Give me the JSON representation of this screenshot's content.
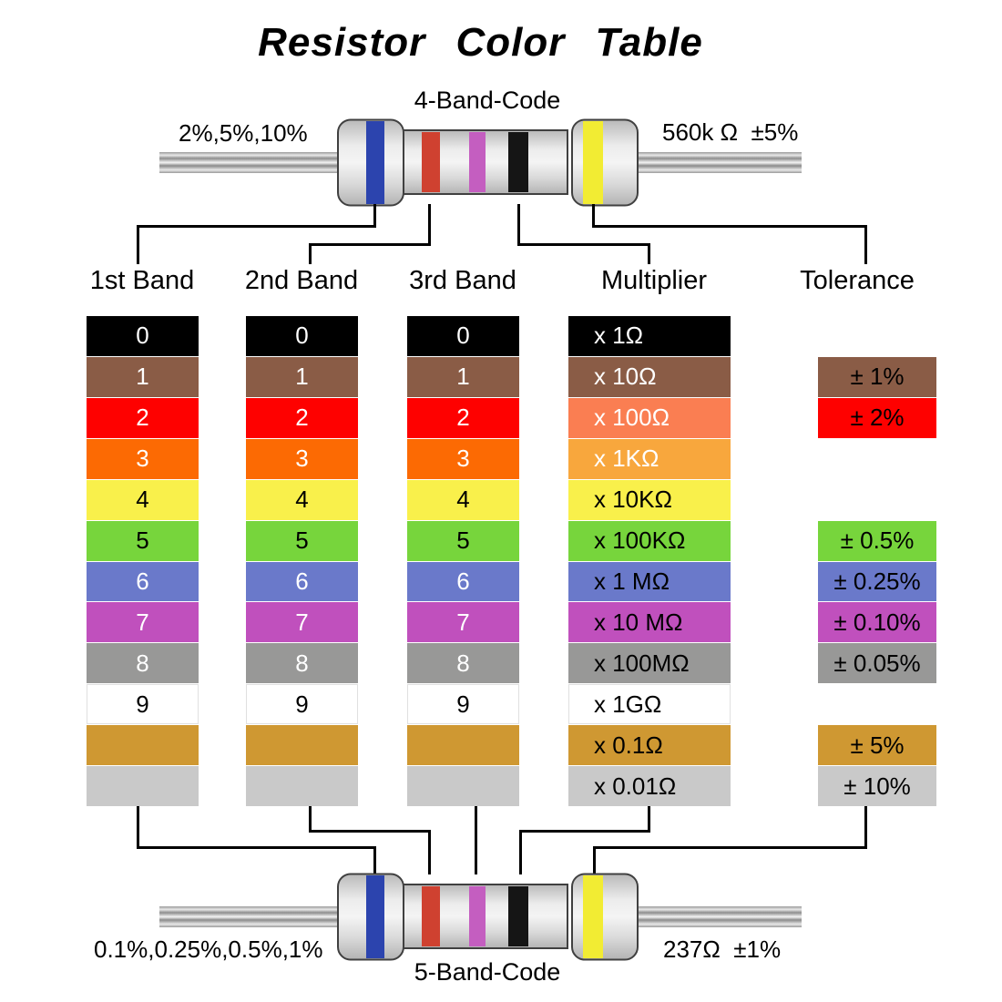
{
  "title": "Resistor Color Table",
  "top_resistor": {
    "code_label": "4-Band-Code",
    "left_label": "2%,5%,10%",
    "right_label": "560k Ω  ±5%"
  },
  "bottom_resistor": {
    "code_label": "5-Band-Code",
    "left_label": "0.1%,0.25%,0.5%,1%",
    "right_label": "237Ω  ±1%"
  },
  "resistor_bands": [
    {
      "name": "blue",
      "color": "#2c44ae"
    },
    {
      "name": "red",
      "color": "#cf4130"
    },
    {
      "name": "violet",
      "color": "#c45ec0"
    },
    {
      "name": "black",
      "color": "#151515"
    },
    {
      "name": "yellow",
      "color": "#f2ec33"
    }
  ],
  "columns": [
    "1st Band",
    "2nd Band",
    "3rd Band",
    "Multiplier",
    "Tolerance"
  ],
  "table": {
    "rows": [
      {
        "color": "black",
        "digit": "0",
        "band_bg": "#000000",
        "band_fg": "#ffffff",
        "mult_label": "x 1Ω",
        "mult_bg": "#000000",
        "mult_fg": "#ffffff",
        "tol_label": null,
        "tol_bg": null,
        "tol_fg": null
      },
      {
        "color": "brown",
        "digit": "1",
        "band_bg": "#8a5c46",
        "band_fg": "#ffffff",
        "mult_label": "x 10Ω",
        "mult_bg": "#8a5c46",
        "mult_fg": "#ffffff",
        "tol_label": "± 1%",
        "tol_bg": "#8a5c46",
        "tol_fg": "#000000"
      },
      {
        "color": "red",
        "digit": "2",
        "band_bg": "#fe0100",
        "band_fg": "#ffffff",
        "mult_label": "x 100Ω",
        "mult_bg": "#fa7e52",
        "mult_fg": "#ffffff",
        "tol_label": "± 2%",
        "tol_bg": "#fe0100",
        "tol_fg": "#000000"
      },
      {
        "color": "orange",
        "digit": "3",
        "band_bg": "#fc6a03",
        "band_fg": "#ffffff",
        "mult_label": "x 1KΩ",
        "mult_bg": "#f8a73d",
        "mult_fg": "#ffffff",
        "tol_label": null,
        "tol_bg": null,
        "tol_fg": null
      },
      {
        "color": "yellow",
        "digit": "4",
        "band_bg": "#f9f04b",
        "band_fg": "#000000",
        "mult_label": "x 10KΩ",
        "mult_bg": "#f9f04b",
        "mult_fg": "#000000",
        "tol_label": null,
        "tol_bg": null,
        "tol_fg": null
      },
      {
        "color": "green",
        "digit": "5",
        "band_bg": "#77d53c",
        "band_fg": "#000000",
        "mult_label": "x 100KΩ",
        "mult_bg": "#77d53c",
        "mult_fg": "#000000",
        "tol_label": "± 0.5%",
        "tol_bg": "#77d53c",
        "tol_fg": "#000000"
      },
      {
        "color": "blue",
        "digit": "6",
        "band_bg": "#6a79ca",
        "band_fg": "#ffffff",
        "mult_label": "x 1 MΩ",
        "mult_bg": "#6a79ca",
        "mult_fg": "#000000",
        "tol_label": "± 0.25%",
        "tol_bg": "#6a79ca",
        "tol_fg": "#000000"
      },
      {
        "color": "violet",
        "digit": "7",
        "band_bg": "#c050bd",
        "band_fg": "#ffffff",
        "mult_label": "x 10 MΩ",
        "mult_bg": "#c050bd",
        "mult_fg": "#000000",
        "tol_label": "± 0.10%",
        "tol_bg": "#c050bd",
        "tol_fg": "#000000"
      },
      {
        "color": "gray",
        "digit": "8",
        "band_bg": "#989897",
        "band_fg": "#ffffff",
        "mult_label": "x 100MΩ",
        "mult_bg": "#989897",
        "mult_fg": "#000000",
        "tol_label": "± 0.05%",
        "tol_bg": "#989897",
        "tol_fg": "#000000"
      },
      {
        "color": "white",
        "digit": "9",
        "band_bg": "#ffffff",
        "band_fg": "#000000",
        "mult_label": "x 1GΩ",
        "mult_bg": "#ffffff",
        "mult_fg": "#000000",
        "tol_label": null,
        "tol_bg": null,
        "tol_fg": null
      },
      {
        "color": "gold",
        "digit": "",
        "band_bg": "#cf9832",
        "band_fg": "#000000",
        "mult_label": "x 0.1Ω",
        "mult_bg": "#cf9832",
        "mult_fg": "#000000",
        "tol_label": "± 5%",
        "tol_bg": "#cf9832",
        "tol_fg": "#000000"
      },
      {
        "color": "silver",
        "digit": "",
        "band_bg": "#c9c9c9",
        "band_fg": "#000000",
        "mult_label": "x 0.01Ω",
        "mult_bg": "#c9c9c9",
        "mult_fg": "#000000",
        "tol_label": "± 10%",
        "tol_bg": "#c9c9c9",
        "tol_fg": "#000000"
      }
    ]
  }
}
